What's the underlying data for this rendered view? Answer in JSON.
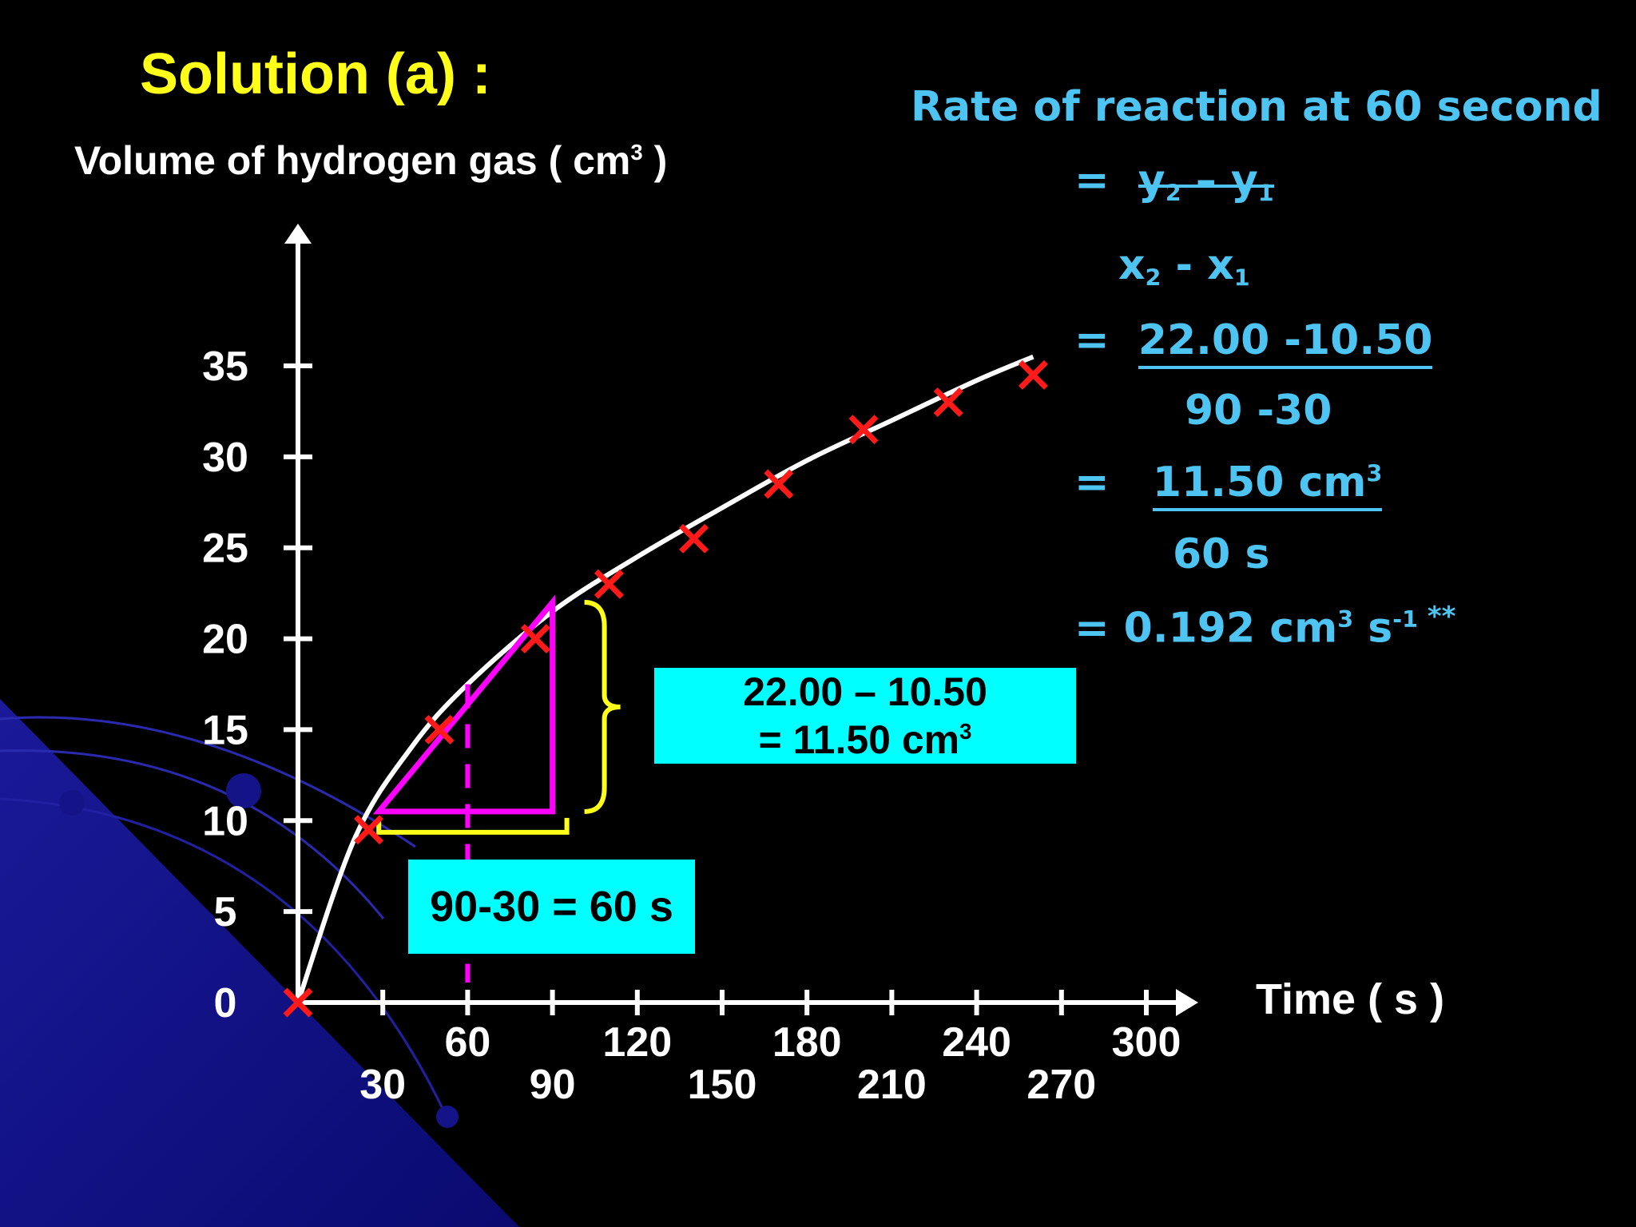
{
  "title": "Solution (a) :",
  "y_axis_label": "Volume of hydrogen gas ( cm",
  "y_axis_label_sup": "3",
  "y_axis_label_end": " )",
  "x_axis_label": "Time ( s )",
  "colors": {
    "title": "#ffff1a",
    "solution_text": "#4ec4f2",
    "points": "#ff1a1a",
    "tangent": "#ff00ff",
    "brace": "#ffff1a",
    "callout": "#00ffff",
    "curve": "#ffffff"
  },
  "solution": {
    "heading": "Rate of reaction at 60 second",
    "eq1_prefix": "=",
    "y2": "y",
    "y2_sub": "2",
    "minus": " – ",
    "y1": "y",
    "y1_sub": "1",
    "x2": "x",
    "x2_sub": "2",
    "minus2": " - ",
    "x1": "x",
    "x1_sub": "1",
    "eq2_prefix": "=",
    "eq2_num": "22.00 -10.50",
    "eq2_den": "90 -30",
    "eq3_prefix": "=",
    "eq3_num": "11.50 cm",
    "eq3_num_sup": "3",
    "eq3_den": "60 s",
    "eq4": "= 0.192 cm",
    "eq4_sup": "3",
    "eq4_mid": " s",
    "eq4_sup2": "-1",
    "eq4_end": " **"
  },
  "callouts": {
    "dy_line1": "22.00 – 10.50",
    "dy_line2": "= 11.50 cm",
    "dy_sup": "3",
    "dx": "90-30 = 60 s"
  },
  "chart_data": {
    "type": "scatter",
    "xlabel": "Time ( s )",
    "ylabel": "Volume of hydrogen gas ( cm3 )",
    "xlim": [
      0,
      300
    ],
    "ylim": [
      0,
      35
    ],
    "x_ticks": [
      30,
      60,
      90,
      120,
      150,
      180,
      210,
      240,
      270,
      300
    ],
    "y_ticks": [
      0,
      5,
      10,
      15,
      20,
      25,
      30,
      35
    ],
    "points": [
      {
        "x": 0,
        "y": 0
      },
      {
        "x": 25,
        "y": 9.5
      },
      {
        "x": 50,
        "y": 15
      },
      {
        "x": 84,
        "y": 20
      },
      {
        "x": 110,
        "y": 23
      },
      {
        "x": 140,
        "y": 25.5
      },
      {
        "x": 170,
        "y": 28.5
      },
      {
        "x": 200,
        "y": 31.5
      },
      {
        "x": 230,
        "y": 33
      },
      {
        "x": 260,
        "y": 34.5
      }
    ],
    "curve": [
      {
        "x": 0,
        "y": 0
      },
      {
        "x": 20,
        "y": 9
      },
      {
        "x": 40,
        "y": 14
      },
      {
        "x": 60,
        "y": 17.5
      },
      {
        "x": 90,
        "y": 21.5
      },
      {
        "x": 120,
        "y": 24.5
      },
      {
        "x": 150,
        "y": 27.2
      },
      {
        "x": 180,
        "y": 29.8
      },
      {
        "x": 210,
        "y": 32
      },
      {
        "x": 240,
        "y": 34.2
      },
      {
        "x": 260,
        "y": 35.5
      }
    ],
    "tangent_triangle": {
      "x1": 30,
      "y1": 10.5,
      "x2": 90,
      "y2": 22
    },
    "dashed_x": 60
  }
}
